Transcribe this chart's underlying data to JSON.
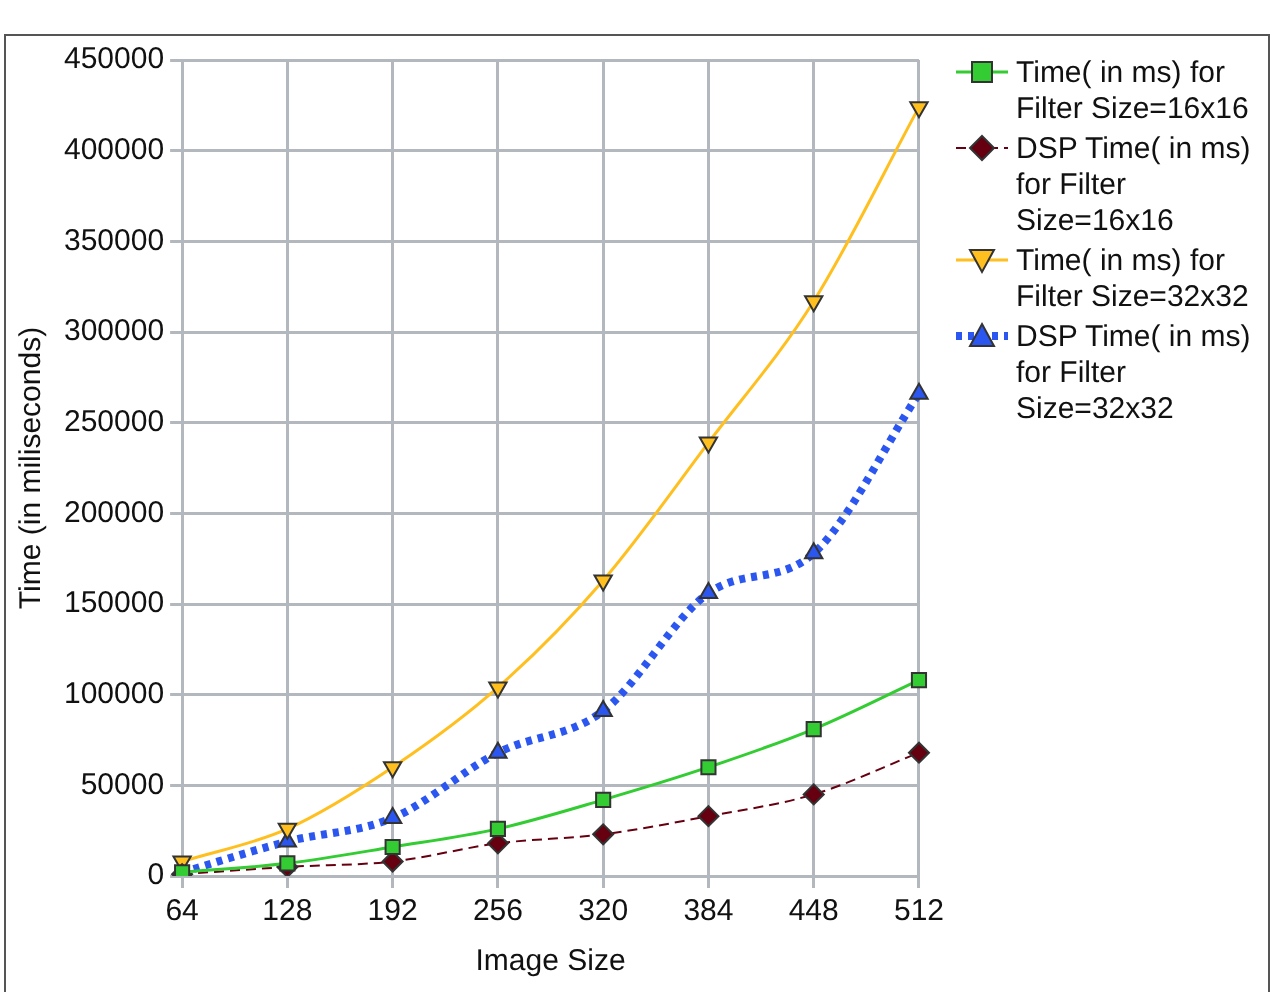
{
  "chart_data": {
    "type": "line",
    "xlabel": "Image Size",
    "ylabel": "Time (in miliseconds)",
    "categories": [
      "64",
      "128",
      "192",
      "256",
      "320",
      "384",
      "448",
      "512"
    ],
    "ylim": [
      0,
      450000
    ],
    "yticks": [
      0,
      50000,
      100000,
      150000,
      200000,
      250000,
      300000,
      350000,
      400000,
      450000
    ],
    "grid": true,
    "legend": "right",
    "series": [
      {
        "name": "Time( in ms) for Filter Size=16x16",
        "color": "#33cc33",
        "marker": "square",
        "line_style": "solid",
        "values": [
          2000,
          7000,
          16000,
          26000,
          42000,
          60000,
          81000,
          108000
        ]
      },
      {
        "name": "DSP Time( in ms) for Filter Size=16x16",
        "color": "#660011",
        "marker": "diamond",
        "line_style": "dashed",
        "values": [
          1000,
          5000,
          8000,
          18000,
          23000,
          33000,
          45000,
          68000
        ]
      },
      {
        "name": "Time( in ms) for Filter Size=32x32",
        "color": "#ffbf1f",
        "marker": "triangle-down",
        "line_style": "solid",
        "values": [
          8000,
          26000,
          60000,
          104000,
          163000,
          239000,
          317000,
          424000
        ]
      },
      {
        "name": "DSP Time( in ms) for Filter Size=32x32",
        "color": "#2b56f0",
        "marker": "triangle",
        "line_style": "dotted",
        "values": [
          2000,
          19000,
          32000,
          68000,
          91000,
          156000,
          178000,
          266000
        ]
      }
    ]
  }
}
